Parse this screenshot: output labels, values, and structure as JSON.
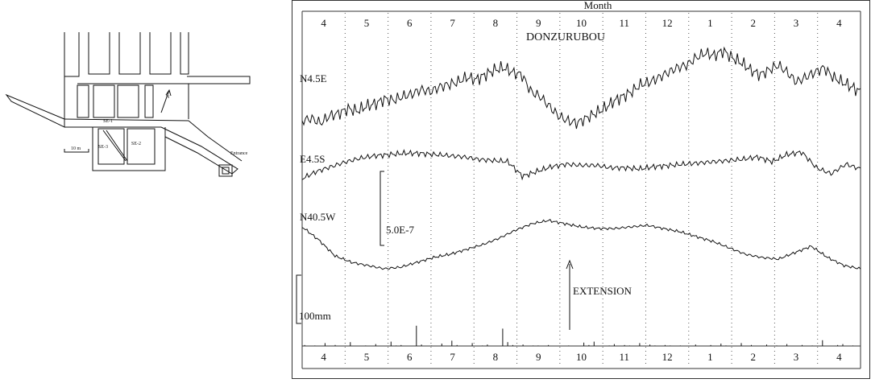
{
  "map": {
    "labels": {
      "se1": "SE-1",
      "se2": "SE-2",
      "se3": "SE-3",
      "north": "N",
      "scale": "10 m",
      "entrance": "Entrance"
    }
  },
  "chart_data": {
    "type": "line",
    "title": "DONZURUBOU",
    "xlabel": "Month",
    "months": [
      "4",
      "5",
      "6",
      "7",
      "8",
      "9",
      "10",
      "11",
      "12",
      "1",
      "2",
      "3",
      "4"
    ],
    "strain_scale_label": "5.0E-7",
    "rain_scale_label": "100mm",
    "annotation": "EXTENSION",
    "series": [
      {
        "name": "N4.5E",
        "values": [
          0.0,
          0.1,
          -0.1,
          0.2,
          0.3,
          0.5,
          0.4,
          0.6,
          0.7,
          0.9,
          0.85,
          1.0,
          1.1,
          1.3,
          1.2,
          1.4,
          1.5,
          1.6,
          1.8,
          1.7,
          1.9,
          2.1,
          2.2,
          2.0,
          1.9,
          1.2,
          1.0,
          0.6,
          0.2,
          0.0,
          -0.1,
          0.1,
          0.3,
          0.5,
          0.8,
          1.0,
          1.2,
          1.5,
          1.6,
          1.8,
          2.0,
          2.2,
          2.3,
          2.6,
          2.8,
          2.7,
          2.9,
          2.6,
          2.4,
          2.1,
          1.9,
          2.1,
          2.3,
          2.0,
          1.6,
          1.8,
          2.0,
          2.2,
          1.8,
          1.6,
          1.4,
          1.2
        ]
      },
      {
        "name": "E4.5S",
        "values": [
          0.0,
          0.3,
          0.5,
          0.7,
          0.85,
          0.95,
          1.0,
          1.05,
          1.05,
          1.0,
          0.95,
          0.9,
          0.8,
          0.75,
          0.7,
          0.1,
          0.3,
          0.5,
          0.6,
          0.55,
          0.55,
          0.45,
          0.45,
          0.4,
          0.5,
          0.55,
          0.6,
          0.65,
          0.7,
          0.75,
          0.8,
          0.9,
          0.7,
          1.0,
          1.1,
          0.45,
          0.2,
          0.6,
          0.4
        ]
      },
      {
        "name": "N40.5W",
        "values": [
          0.0,
          -0.4,
          -0.9,
          -1.1,
          -1.2,
          -1.3,
          -1.25,
          -1.1,
          -0.95,
          -0.85,
          -0.7,
          -0.55,
          -0.35,
          -0.1,
          0.1,
          0.2,
          0.1,
          0.0,
          -0.05,
          -0.05,
          0.0,
          0.05,
          -0.05,
          -0.15,
          -0.3,
          -0.45,
          -0.65,
          -0.85,
          -0.95,
          -1.0,
          -0.8,
          -0.6,
          -0.95,
          -1.2,
          -1.3
        ]
      },
      {
        "name": "rainfall",
        "values": [
          2,
          0,
          1,
          0,
          6,
          0,
          2,
          0,
          0,
          8,
          0,
          0,
          1,
          0,
          4,
          0,
          0,
          9,
          1,
          2,
          0,
          0,
          42,
          3,
          0,
          1,
          0,
          5,
          0,
          11,
          2,
          0,
          0,
          6,
          0,
          1,
          3,
          0,
          0,
          36,
          8,
          2,
          0,
          3,
          0,
          1,
          1,
          0,
          2,
          0,
          0,
          0,
          1,
          0,
          0,
          7,
          2,
          9,
          0,
          0,
          1,
          4,
          0,
          2,
          1,
          0,
          6,
          0,
          3,
          1,
          0,
          2,
          1,
          0,
          1,
          0,
          0,
          3,
          0,
          0,
          2,
          0,
          5,
          1,
          0,
          0,
          6,
          0,
          2,
          0,
          0,
          3,
          0,
          1,
          0,
          4,
          0,
          0,
          2,
          0,
          1,
          0,
          12,
          0,
          0,
          2,
          4,
          0,
          1,
          0
        ]
      }
    ]
  }
}
